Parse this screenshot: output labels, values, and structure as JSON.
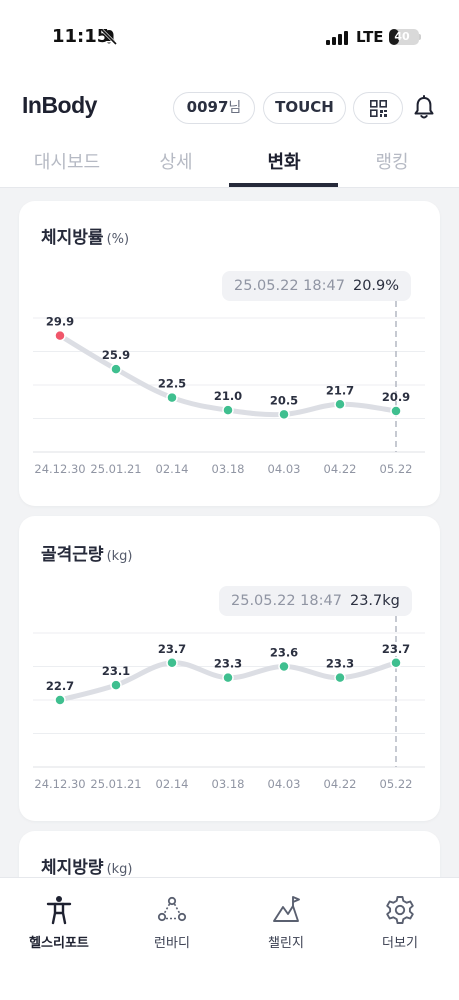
{
  "status_bar": {
    "time": "11:15",
    "network": "LTE",
    "battery": "40",
    "battery_level": 0.4
  },
  "header": {
    "logo": "InBody",
    "user_id": "0097",
    "user_suffix": "님",
    "touch_label": "TOUCH",
    "qr_icon": "qr-icon",
    "bell_icon": "bell-icon"
  },
  "tabs": [
    {
      "label": "대시보드",
      "active": false
    },
    {
      "label": "상세",
      "active": false
    },
    {
      "label": "변화",
      "active": true
    },
    {
      "label": "랭킹",
      "active": false
    }
  ],
  "cards": [
    {
      "title": "체지방률",
      "unit": "(%)",
      "tooltip_date": "25.05.22 18:47",
      "tooltip_value": "20.9%"
    },
    {
      "title": "골격근량",
      "unit": "(kg)",
      "tooltip_date": "25.05.22 18:47",
      "tooltip_value": "23.7kg"
    },
    {
      "title": "체지방량",
      "unit": "(kg)"
    }
  ],
  "chart_data": [
    {
      "type": "line",
      "title": "",
      "x": [
        "24.12.30",
        "25.01.21",
        "02.14",
        "03.18",
        "04.03",
        "04.22",
        "05.22"
      ],
      "series": [
        {
          "values": [
            29.9,
            25.9,
            22.5,
            21.0,
            20.5,
            21.7,
            20.9
          ]
        }
      ],
      "highlight_index": 0,
      "selected_index": 6,
      "ylim": [
        16,
        32
      ],
      "grid": true,
      "colors": {
        "line": "#dcdee4",
        "point": "#3fbf8f",
        "highlight": "#f0566a"
      }
    },
    {
      "type": "line",
      "title": "",
      "x": [
        "24.12.30",
        "25.01.21",
        "02.14",
        "03.18",
        "04.03",
        "04.22",
        "05.22"
      ],
      "series": [
        {
          "values": [
            22.7,
            23.1,
            23.7,
            23.3,
            23.6,
            23.3,
            23.7
          ]
        }
      ],
      "selected_index": 6,
      "ylim": [
        20.9,
        24.5
      ],
      "grid": true,
      "colors": {
        "line": "#dcdee4",
        "point": "#3fbf8f"
      }
    }
  ],
  "bottom_nav": [
    {
      "label": "헬스리포트",
      "icon": "health-report-icon",
      "active": true
    },
    {
      "label": "런바디",
      "icon": "runbody-icon",
      "active": false
    },
    {
      "label": "챌린지",
      "icon": "challenge-icon",
      "active": false
    },
    {
      "label": "더보기",
      "icon": "gear-icon",
      "active": false
    }
  ]
}
